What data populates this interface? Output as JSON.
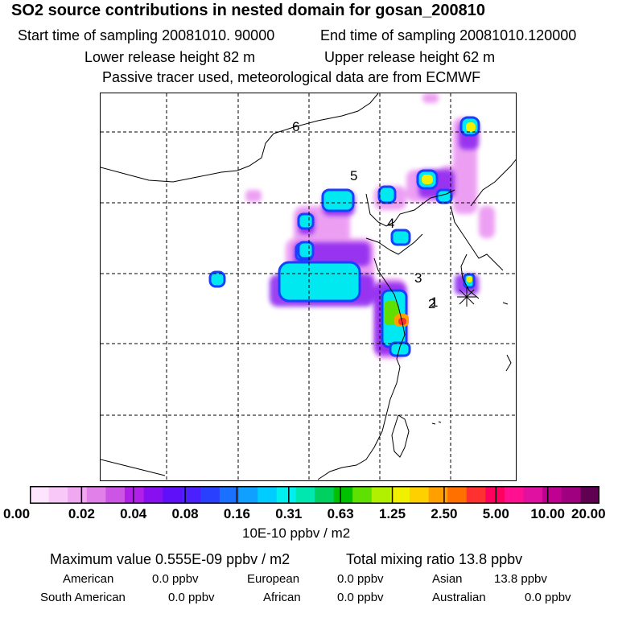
{
  "header": {
    "title": "SO2 source contributions in nested domain for gosan_200810",
    "start_time": "Start time of sampling 20081010. 90000",
    "end_time": "End time of sampling 20081010.120000",
    "lower_release": "Lower release height   82 m",
    "upper_release": "Upper release height   62 m",
    "note": "Passive tracer used, meteorological data are from ECMWF"
  },
  "map": {
    "day_labels": [
      "6",
      "5",
      "4",
      "3",
      "2",
      "1"
    ],
    "receptor_marker": "gosan-star-icon"
  },
  "colorbar": {
    "colors": [
      "#fde6fd",
      "#f8c8f8",
      "#f0a8f0",
      "#e080e8",
      "#cc55e6",
      "#b020e8",
      "#8810f0",
      "#6010f8",
      "#4a20ff",
      "#2a40ff",
      "#1a70ff",
      "#10a0ff",
      "#00ccff",
      "#00f0f0",
      "#00e8b0",
      "#00d060",
      "#00c000",
      "#60e000",
      "#b0f000",
      "#f0f000",
      "#ffd000",
      "#ffa000",
      "#ff7000",
      "#ff3030",
      "#ff0060",
      "#ff1090",
      "#e010a0",
      "#c00090",
      "#a00080",
      "#600050"
    ],
    "tick_labels": [
      "0.00",
      "0.02",
      "0.04",
      "0.08",
      "0.16",
      "0.31",
      "0.63",
      "1.25",
      "2.50",
      "5.00",
      "10.00",
      "20.00"
    ],
    "units": "10E-10 ppbv / m2"
  },
  "summary": {
    "max_value": "Maximum value  0.555E-09 ppbv / m2",
    "total": "Total mixing ratio       13.8 ppbv",
    "regions": [
      {
        "name": "American",
        "value": "0.0 ppbv"
      },
      {
        "name": "European",
        "value": "0.0 ppbv"
      },
      {
        "name": "Asian",
        "value": "13.8 ppbv"
      },
      {
        "name": "South American",
        "value": "0.0 ppbv"
      },
      {
        "name": "African",
        "value": "0.0 ppbv"
      },
      {
        "name": "Australian",
        "value": "0.0 ppbv"
      }
    ]
  }
}
